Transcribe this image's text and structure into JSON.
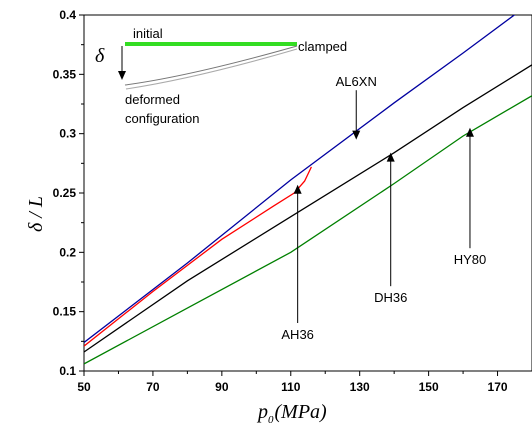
{
  "chart_data": {
    "type": "line",
    "xlabel": "p",
    "xlabel_sub": "0",
    "xlabel_unit": "(MPa)",
    "ylabel": "δ / L",
    "xlim": [
      50,
      180
    ],
    "ylim": [
      0.1,
      0.4
    ],
    "xticks": [
      "50",
      "70",
      "90",
      "110",
      "130",
      "150",
      "170"
    ],
    "yticks": [
      "0.1",
      "0.15",
      "0.2",
      "0.25",
      "0.3",
      "0.35",
      "0.4"
    ],
    "series": [
      {
        "name": "AL6XN",
        "color": "#0000a0",
        "x": [
          50,
          80,
          110,
          140,
          160,
          180
        ],
        "y": [
          0.124,
          0.191,
          0.261,
          0.326,
          0.368,
          0.411
        ]
      },
      {
        "name": "AH36",
        "color": "#ff0000",
        "x": [
          50,
          70,
          90,
          105,
          111,
          114,
          116
        ],
        "y": [
          0.121,
          0.167,
          0.211,
          0.239,
          0.25,
          0.26,
          0.272
        ]
      },
      {
        "name": "DH36",
        "color": "#000000",
        "x": [
          50,
          80,
          110,
          140,
          160,
          180
        ],
        "y": [
          0.116,
          0.176,
          0.23,
          0.284,
          0.322,
          0.358
        ]
      },
      {
        "name": "HY80",
        "color": "#008000",
        "x": [
          50,
          80,
          110,
          140,
          160,
          180
        ],
        "y": [
          0.106,
          0.153,
          0.2,
          0.258,
          0.298,
          0.332
        ]
      }
    ],
    "annotations": [
      {
        "label": "AL6XN",
        "text_x": 129,
        "text_y": 0.34,
        "arrow_to_x": 129,
        "arrow_to_y": 0.295
      },
      {
        "label": "AH36",
        "text_x": 112,
        "text_y": 0.127,
        "arrow_to_x": 112,
        "arrow_to_y": 0.257
      },
      {
        "label": "DH36",
        "text_x": 139,
        "text_y": 0.158,
        "arrow_to_x": 139,
        "arrow_to_y": 0.284
      },
      {
        "label": "HY80",
        "text_x": 162,
        "text_y": 0.19,
        "arrow_to_x": 162,
        "arrow_to_y": 0.305
      }
    ],
    "inset": {
      "symbol": "δ",
      "initial_label": "initial",
      "clamped_label": "clamped",
      "deformed_label_line1": "deformed",
      "deformed_label_line2": "configuration",
      "initial_color": "#33dd22"
    }
  }
}
